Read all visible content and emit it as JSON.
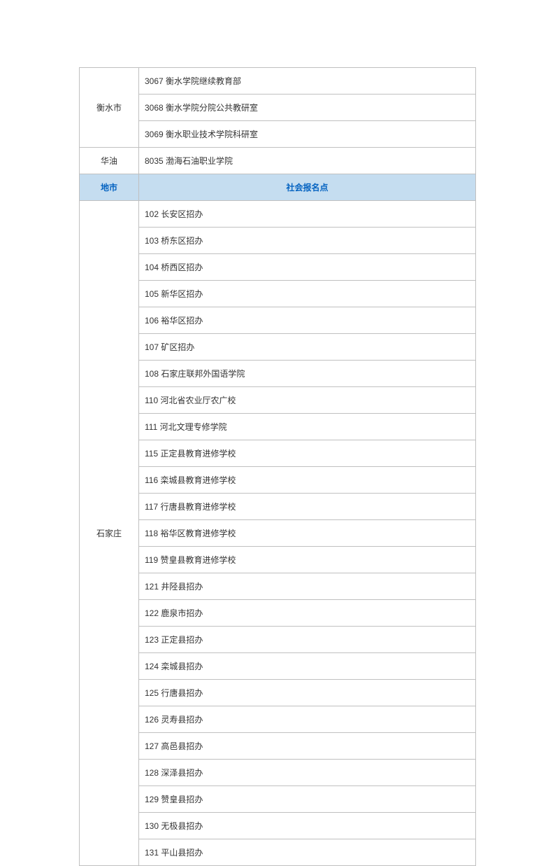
{
  "table": {
    "header": {
      "city": "地市",
      "point": "社会报名点"
    },
    "colors": {
      "border": "#c0c0c0",
      "header_bg": "#c5ddf0",
      "header_text": "#0563c1",
      "text": "#333333",
      "background": "#ffffff"
    },
    "column_widths": {
      "city": 85,
      "data": 483
    },
    "font_size": 12,
    "sections": [
      {
        "city": "衡水市",
        "rows": [
          "3067 衡水学院继续教育部",
          "3068 衡水学院分院公共教研室",
          "3069 衡水职业技术学院科研室"
        ]
      },
      {
        "city": "华油",
        "rows": [
          "8035 渤海石油职业学院"
        ]
      }
    ],
    "main_section": {
      "city": "石家庄",
      "rows": [
        "102 长安区招办",
        "103 桥东区招办",
        "104 桥西区招办",
        "105 新华区招办",
        "106 裕华区招办",
        "107 矿区招办",
        "108 石家庄联邦外国语学院",
        "110 河北省农业厅农广校",
        "111 河北文理专修学院",
        "115 正定县教育进修学校",
        "116 栾城县教育进修学校",
        "117 行唐县教育进修学校",
        "118 裕华区教育进修学校",
        "119 赞皇县教育进修学校",
        "121 井陉县招办",
        "122 鹿泉市招办",
        "123 正定县招办",
        "124 栾城县招办",
        "125 行唐县招办",
        "126 灵寿县招办",
        "127 高邑县招办",
        "128 深泽县招办",
        "129 赞皇县招办",
        "130 无极县招办",
        "131 平山县招办"
      ]
    }
  }
}
